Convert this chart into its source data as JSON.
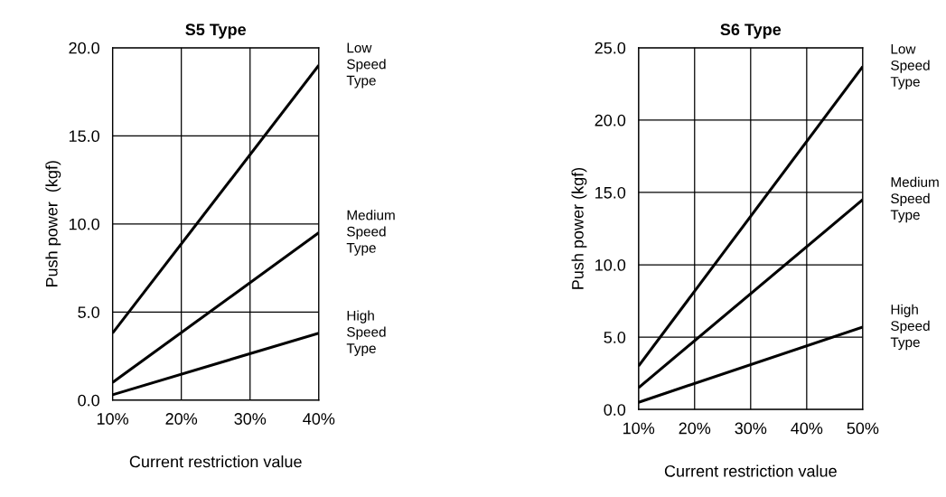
{
  "chart_data": [
    {
      "type": "line",
      "title": "S5 Type",
      "xlabel": "Current restriction value",
      "ylabel": "Push power  (kgf)",
      "x": [
        10,
        40
      ],
      "xlim": [
        10,
        40
      ],
      "xticks": [
        {
          "value": 10,
          "label": "10%"
        },
        {
          "value": 20,
          "label": "20%"
        },
        {
          "value": 30,
          "label": "30%"
        },
        {
          "value": 40,
          "label": "40%"
        }
      ],
      "ylim": [
        0,
        20
      ],
      "yticks": [
        {
          "value": 0,
          "label": "0.0"
        },
        {
          "value": 5,
          "label": "5.0"
        },
        {
          "value": 10,
          "label": "10.0"
        },
        {
          "value": 15,
          "label": "15.0"
        },
        {
          "value": 20,
          "label": "20.0"
        }
      ],
      "grid": true,
      "marker": "none",
      "line_style": "solid",
      "series": [
        {
          "name": "Low Speed Type",
          "color": "#000000",
          "values": [
            3.8,
            19.0
          ]
        },
        {
          "name": "Medium Speed Type",
          "color": "#000000",
          "values": [
            1.0,
            9.5
          ]
        },
        {
          "name": "High Speed Type",
          "color": "#000000",
          "values": [
            0.3,
            3.8
          ]
        }
      ]
    },
    {
      "type": "line",
      "title": "S6 Type",
      "xlabel": "Current restriction value",
      "ylabel": "Push power (kgf)",
      "x": [
        10,
        50
      ],
      "xlim": [
        10,
        50
      ],
      "xticks": [
        {
          "value": 10,
          "label": "10%"
        },
        {
          "value": 20,
          "label": "20%"
        },
        {
          "value": 30,
          "label": "30%"
        },
        {
          "value": 40,
          "label": "40%"
        },
        {
          "value": 50,
          "label": "50%"
        }
      ],
      "ylim": [
        0,
        25
      ],
      "yticks": [
        {
          "value": 0,
          "label": "0.0"
        },
        {
          "value": 5,
          "label": "5.0"
        },
        {
          "value": 10,
          "label": "10.0"
        },
        {
          "value": 15,
          "label": "15.0"
        },
        {
          "value": 20,
          "label": "20.0"
        },
        {
          "value": 25,
          "label": "25.0"
        }
      ],
      "grid": true,
      "marker": "none",
      "line_style": "solid",
      "series": [
        {
          "name": "Low Speed Type",
          "color": "#000000",
          "values": [
            3.0,
            23.7
          ]
        },
        {
          "name": "Medium Speed Type",
          "color": "#000000",
          "values": [
            1.5,
            14.5
          ]
        },
        {
          "name": "High Speed Type",
          "color": "#000000",
          "values": [
            0.5,
            5.7
          ]
        }
      ]
    }
  ]
}
